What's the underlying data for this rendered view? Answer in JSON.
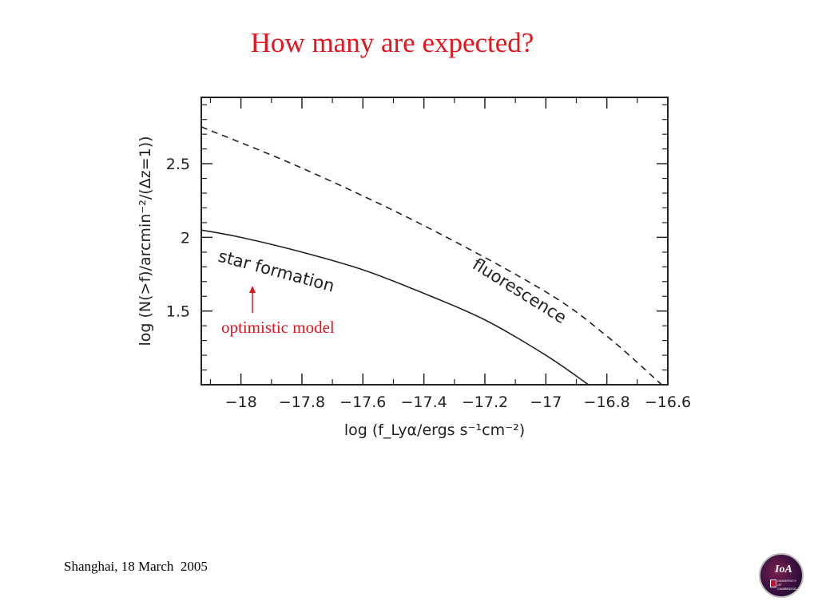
{
  "slide": {
    "title": "How many are expected?",
    "footer": "Shanghai, 18 March  2005",
    "logo_text": "IoA",
    "logo_subtext": "UNIVERSITY OF CAMBRIDGE"
  },
  "chart_data": {
    "type": "line",
    "title": "",
    "xlabel": "log (f_Lyα/ergs s⁻¹cm⁻²)",
    "ylabel": "log (N(>f)/arcmin⁻²/(Δz=1))",
    "xlim": [
      -18.13,
      -16.6
    ],
    "ylim": [
      1.0,
      2.95
    ],
    "xticks": [
      -18,
      -17.8,
      -17.6,
      -17.4,
      -17.2,
      -17,
      -16.8,
      -16.6
    ],
    "xtick_labels": [
      "−18",
      "−17.8",
      "−17.6",
      "−17.4",
      "−17.2",
      "−17",
      "−16.8",
      "−16.6"
    ],
    "yticks": [
      1.5,
      2,
      2.5
    ],
    "ytick_labels": [
      "1.5",
      "2",
      "2.5"
    ],
    "grid": false,
    "series": [
      {
        "name": "fluorescence",
        "style": "dashed",
        "color": "#222222",
        "x": [
          -18.13,
          -17.8,
          -17.4,
          -17.0,
          -16.8,
          -16.62
        ],
        "y": [
          2.75,
          2.47,
          2.08,
          1.63,
          1.33,
          1.0
        ]
      },
      {
        "name": "star formation",
        "style": "solid",
        "color": "#222222",
        "x": [
          -18.13,
          -18.0,
          -17.8,
          -17.6,
          -17.4,
          -17.2,
          -17.0,
          -16.86
        ],
        "y": [
          2.05,
          2.0,
          1.9,
          1.78,
          1.62,
          1.44,
          1.2,
          1.0
        ]
      }
    ],
    "annotations": [
      {
        "text": "star formation",
        "series": "star formation"
      },
      {
        "text": "fluorescence",
        "series": "fluorescence"
      },
      {
        "text": "optimistic model",
        "color": "#e8141c",
        "arrow": true
      }
    ]
  }
}
